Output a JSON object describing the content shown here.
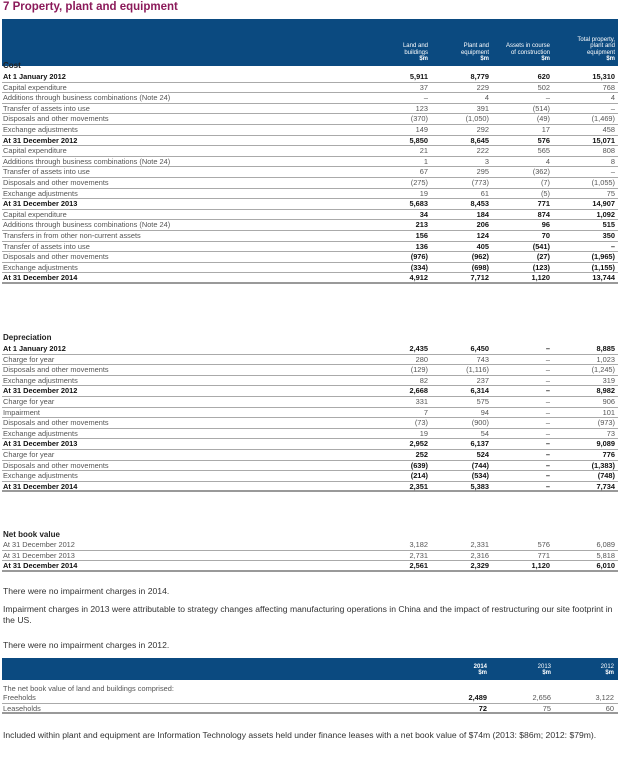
{
  "title": "7 Property, plant and equipment",
  "headers": [
    [
      "Land and",
      "buildings",
      "$m"
    ],
    [
      "Plant and",
      "equipment",
      "$m"
    ],
    [
      "Assets in course",
      "of construction",
      "$m"
    ],
    [
      "Total property,",
      "plant and",
      "equipment",
      "$m"
    ]
  ],
  "cost": {
    "label": "Cost",
    "rows": [
      {
        "label": "At 1 January 2012",
        "values": [
          "5,911",
          "8,779",
          "620",
          "15,310"
        ],
        "bold": true
      },
      {
        "label": "Capital expenditure",
        "values": [
          "37",
          "229",
          "502",
          "768"
        ]
      },
      {
        "label": "Additions through business combinations (Note 24)",
        "values": [
          "–",
          "4",
          "–",
          "4"
        ]
      },
      {
        "label": "Transfer of assets into use",
        "values": [
          "123",
          "391",
          "(514)",
          "–"
        ]
      },
      {
        "label": "Disposals and other movements",
        "values": [
          "(370)",
          "(1,050)",
          "(49)",
          "(1,469)"
        ]
      },
      {
        "label": "Exchange adjustments",
        "values": [
          "149",
          "292",
          "17",
          "458"
        ]
      },
      {
        "label": "At 31 December 2012",
        "values": [
          "5,850",
          "8,645",
          "576",
          "15,071"
        ],
        "bold": true
      },
      {
        "label": "Capital expenditure",
        "values": [
          "21",
          "222",
          "565",
          "808"
        ]
      },
      {
        "label": "Additions through business combinations (Note 24)",
        "values": [
          "1",
          "3",
          "4",
          "8"
        ]
      },
      {
        "label": "Transfer of assets into use",
        "values": [
          "67",
          "295",
          "(362)",
          "–"
        ]
      },
      {
        "label": "Disposals and other movements",
        "values": [
          "(275)",
          "(773)",
          "(7)",
          "(1,055)"
        ]
      },
      {
        "label": "Exchange adjustments",
        "values": [
          "19",
          "61",
          "(5)",
          "75"
        ]
      },
      {
        "label": "At 31 December 2013",
        "values": [
          "5,683",
          "8,453",
          "771",
          "14,907"
        ],
        "bold": true
      },
      {
        "label": "Capital expenditure",
        "values": [
          "34",
          "184",
          "874",
          "1,092"
        ],
        "bold_values": true
      },
      {
        "label": "Additions through business combinations (Note 24)",
        "values": [
          "213",
          "206",
          "96",
          "515"
        ],
        "bold_values": true
      },
      {
        "label": "Transfers in from other non-current assets",
        "values": [
          "156",
          "124",
          "70",
          "350"
        ],
        "bold_values": true
      },
      {
        "label": "Transfer of assets into use",
        "values": [
          "136",
          "405",
          "(541)",
          "–"
        ],
        "bold_values": true
      },
      {
        "label": "Disposals and other movements",
        "values": [
          "(976)",
          "(962)",
          "(27)",
          "(1,965)"
        ],
        "bold_values": true
      },
      {
        "label": "Exchange adjustments",
        "values": [
          "(334)",
          "(698)",
          "(123)",
          "(1,155)"
        ],
        "bold_values": true
      },
      {
        "label": "At 31 December 2014",
        "values": [
          "4,912",
          "7,712",
          "1,120",
          "13,744"
        ],
        "bold": true,
        "bold_values": true
      }
    ]
  },
  "depreciation": {
    "label": "Depreciation",
    "rows": [
      {
        "label": "At 1 January 2012",
        "values": [
          "2,435",
          "6,450",
          "–",
          "8,885"
        ],
        "bold": true
      },
      {
        "label": "Charge for year",
        "values": [
          "280",
          "743",
          "–",
          "1,023"
        ]
      },
      {
        "label": "Disposals and other movements",
        "values": [
          "(129)",
          "(1,116)",
          "–",
          "(1,245)"
        ]
      },
      {
        "label": "Exchange adjustments",
        "values": [
          "82",
          "237",
          "–",
          "319"
        ]
      },
      {
        "label": "At 31 December 2012",
        "values": [
          "2,668",
          "6,314",
          "–",
          "8,982"
        ],
        "bold": true
      },
      {
        "label": "Charge for year",
        "values": [
          "331",
          "575",
          "–",
          "906"
        ]
      },
      {
        "label": "Impairment",
        "values": [
          "7",
          "94",
          "–",
          "101"
        ]
      },
      {
        "label": "Disposals and other movements",
        "values": [
          "(73)",
          "(900)",
          "–",
          "(973)"
        ]
      },
      {
        "label": "Exchange adjustments",
        "values": [
          "19",
          "54",
          "–",
          "73"
        ]
      },
      {
        "label": "At 31 December 2013",
        "values": [
          "2,952",
          "6,137",
          "–",
          "9,089"
        ],
        "bold": true
      },
      {
        "label": "Charge for year",
        "values": [
          "252",
          "524",
          "–",
          "776"
        ],
        "bold_values": true
      },
      {
        "label": "Disposals and other movements",
        "values": [
          "(639)",
          "(744)",
          "–",
          "(1,383)"
        ],
        "bold_values": true
      },
      {
        "label": "Exchange adjustments",
        "values": [
          "(214)",
          "(534)",
          "–",
          "(748)"
        ],
        "bold_values": true
      },
      {
        "label": "At 31 December 2014",
        "values": [
          "2,351",
          "5,383",
          "–",
          "7,734"
        ],
        "bold": true,
        "bold_values": true
      }
    ]
  },
  "nbv": {
    "label": "Net book value",
    "rows": [
      {
        "label": "At 31 December 2012",
        "values": [
          "3,182",
          "2,331",
          "576",
          "6,089"
        ]
      },
      {
        "label": "At 31 December 2013",
        "values": [
          "2,731",
          "2,316",
          "771",
          "5,818"
        ]
      },
      {
        "label": "At 31 December 2014",
        "values": [
          "2,561",
          "2,329",
          "1,120",
          "6,010"
        ],
        "bold": true,
        "bold_values": true
      }
    ]
  },
  "paragraphs": [
    "There were no impairment charges in 2014.",
    "Impairment charges in 2013 were attributable to strategy changes affecting manufacturing operations in China and the impact of restructuring our site footprint in the US.",
    "There were no impairment charges in 2012."
  ],
  "table2": {
    "headers": [
      [
        "2014",
        "$m"
      ],
      [
        "2013",
        "$m"
      ],
      [
        "2012",
        "$m"
      ]
    ],
    "intro": "The net book value of land and buildings comprised:",
    "rows": [
      {
        "label": "Freeholds",
        "values": [
          "2,489",
          "2,656",
          "3,122"
        ]
      },
      {
        "label": "Leaseholds",
        "values": [
          "72",
          "75",
          "60"
        ]
      }
    ]
  },
  "footnote": "Included within plant and equipment are Information Technology assets held under finance leases with a net book value of $74m (2013: $86m; 2012: $79m)."
}
